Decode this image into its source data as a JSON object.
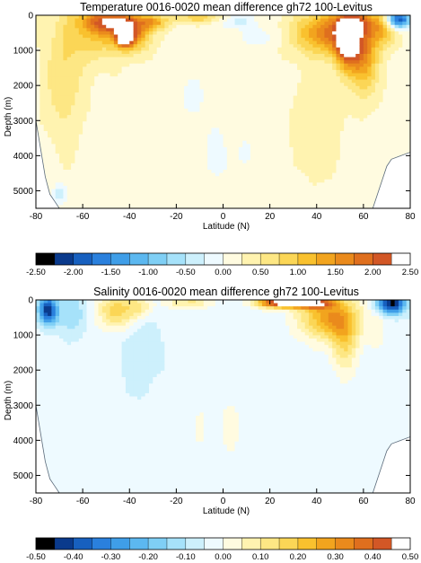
{
  "chart_data": [
    {
      "type": "heatmap",
      "title": "Temperature 0016-0020 mean difference gh72 100-Levitus",
      "xlabel": "Latitude (N)",
      "ylabel": "Depth (m)",
      "xlim": [
        -80,
        80
      ],
      "ylim": [
        5500,
        0
      ],
      "x_ticks": [
        -80,
        -60,
        -40,
        -20,
        0,
        20,
        40,
        60,
        80
      ],
      "x_tick_labels": [
        "-80",
        "-60",
        "-40",
        "-20",
        "0",
        "20",
        "40",
        "60",
        "80"
      ],
      "y_ticks": [
        0,
        1000,
        2000,
        3000,
        4000,
        5000
      ],
      "y_tick_labels": [
        "0",
        "1000",
        "2000",
        "3000",
        "4000",
        "5000"
      ],
      "colorbar": {
        "levels": [
          -2.5,
          -2.25,
          -2.0,
          -1.75,
          -1.5,
          -1.25,
          -1.0,
          -0.75,
          -0.5,
          -0.25,
          0.0,
          0.25,
          0.5,
          0.75,
          1.0,
          1.25,
          1.5,
          1.75,
          2.0,
          2.25,
          2.5
        ],
        "labels": [
          "-2.50",
          "-2.00",
          "-1.50",
          "-1.00",
          "-0.50",
          "0.00",
          "0.50",
          "1.00",
          "1.50",
          "2.00",
          "2.50"
        ],
        "colors": [
          "#000000",
          "#0a3a8c",
          "#1760bf",
          "#2a80dd",
          "#3f9ee8",
          "#5cb8f0",
          "#7fcff5",
          "#a6e2fa",
          "#cdf0fc",
          "#eefaff",
          "#fffbe0",
          "#fff3b0",
          "#fde784",
          "#fbd656",
          "#f9c12e",
          "#f2a41e",
          "#ea8a1c",
          "#df6f1e",
          "#d25726",
          "#ffffff"
        ]
      },
      "features": [
        {
          "lat": -40,
          "depth": 500,
          "lat_radius": 8,
          "depth_radius": 500,
          "value": 1.8
        },
        {
          "lat": -42,
          "depth": 650,
          "lat_radius": 3,
          "depth_radius": 180,
          "value": 2.6
        },
        {
          "lat": -48,
          "depth": 200,
          "lat_radius": 10,
          "depth_radius": 300,
          "value": 1.3
        },
        {
          "lat": -55,
          "depth": 300,
          "lat_radius": 10,
          "depth_radius": 900,
          "value": 0.9
        },
        {
          "lat": -68,
          "depth": 1600,
          "lat_radius": 8,
          "depth_radius": 1800,
          "value": 0.55
        },
        {
          "lat": -30,
          "depth": 200,
          "lat_radius": 6,
          "depth_radius": 200,
          "value": 1.1
        },
        {
          "lat": -10,
          "depth": 80,
          "lat_radius": 12,
          "depth_radius": 150,
          "value": 0.7
        },
        {
          "lat": 5,
          "depth": 150,
          "lat_radius": 8,
          "depth_radius": 200,
          "value": -0.6
        },
        {
          "lat": 15,
          "depth": 600,
          "lat_radius": 8,
          "depth_radius": 300,
          "value": -0.35
        },
        {
          "lat": 45,
          "depth": 500,
          "lat_radius": 14,
          "depth_radius": 600,
          "value": 1.5
        },
        {
          "lat": 53,
          "depth": 800,
          "lat_radius": 5,
          "depth_radius": 700,
          "value": 2.0
        },
        {
          "lat": 60,
          "depth": 1200,
          "lat_radius": 6,
          "depth_radius": 1000,
          "value": 1.3
        },
        {
          "lat": 57,
          "depth": 200,
          "lat_radius": 8,
          "depth_radius": 300,
          "value": 1.1
        },
        {
          "lat": 75,
          "depth": 120,
          "lat_radius": 5,
          "depth_radius": 250,
          "value": -2.3
        },
        {
          "lat": 68,
          "depth": 400,
          "lat_radius": 6,
          "depth_radius": 500,
          "value": 0.9
        },
        {
          "lat": -70,
          "depth": 5100,
          "lat_radius": 3,
          "depth_radius": 300,
          "value": -0.6
        },
        {
          "lat": 0,
          "depth": 4000,
          "lat_radius": 20,
          "depth_radius": 1500,
          "value": -0.2
        },
        {
          "lat": -15,
          "depth": 2200,
          "lat_radius": 8,
          "depth_radius": 800,
          "value": -0.2
        },
        {
          "lat": 40,
          "depth": 3000,
          "lat_radius": 10,
          "depth_radius": 1500,
          "value": 0.3
        }
      ],
      "background_value": 0.18,
      "bottom": {
        "lat": [
          -80,
          -78,
          -76,
          -74,
          -72,
          -70,
          -68,
          -64,
          -60,
          -56,
          -40,
          0,
          40,
          60,
          64,
          66,
          68,
          70,
          72,
          76,
          80
        ],
        "depth": [
          3000,
          3800,
          4600,
          5100,
          5300,
          5500,
          5500,
          5500,
          5500,
          5500,
          5500,
          5500,
          5500,
          5500,
          5500,
          5100,
          4700,
          4300,
          4100,
          4000,
          3900
        ]
      }
    },
    {
      "type": "heatmap",
      "title": "Salinity 0016-0020 mean difference gh72 100-Levitus",
      "xlabel": "Latitude (N)",
      "ylabel": "Depth (m)",
      "xlim": [
        -80,
        80
      ],
      "ylim": [
        5500,
        0
      ],
      "x_ticks": [
        -80,
        -60,
        -40,
        -20,
        0,
        20,
        40,
        60,
        80
      ],
      "x_tick_labels": [
        "-80",
        "-60",
        "-40",
        "-20",
        "0",
        "20",
        "40",
        "60",
        "80"
      ],
      "y_ticks": [
        0,
        1000,
        2000,
        3000,
        4000,
        5000
      ],
      "y_tick_labels": [
        "0",
        "1000",
        "2000",
        "3000",
        "4000",
        "5000"
      ],
      "colorbar": {
        "levels": [
          -0.5,
          -0.45,
          -0.4,
          -0.35,
          -0.3,
          -0.25,
          -0.2,
          -0.15,
          -0.1,
          -0.05,
          0.0,
          0.05,
          0.1,
          0.15,
          0.2,
          0.25,
          0.3,
          0.35,
          0.4,
          0.45,
          0.5
        ],
        "labels": [
          "-0.50",
          "-0.40",
          "-0.30",
          "-0.20",
          "-0.10",
          "0.00",
          "0.10",
          "0.20",
          "0.30",
          "0.40",
          "0.50"
        ],
        "colors": [
          "#000000",
          "#0a3a8c",
          "#1760bf",
          "#2a80dd",
          "#3f9ee8",
          "#5cb8f0",
          "#7fcff5",
          "#a6e2fa",
          "#cdf0fc",
          "#eefaff",
          "#fffbe0",
          "#fff3b0",
          "#fde784",
          "#fbd656",
          "#f9c12e",
          "#f2a41e",
          "#ea8a1c",
          "#df6f1e",
          "#d25726",
          "#ffffff"
        ]
      },
      "features": [
        {
          "lat": -75,
          "depth": 300,
          "lat_radius": 4,
          "depth_radius": 400,
          "value": -0.4
        },
        {
          "lat": -65,
          "depth": 400,
          "lat_radius": 6,
          "depth_radius": 600,
          "value": -0.12
        },
        {
          "lat": -45,
          "depth": 300,
          "lat_radius": 8,
          "depth_radius": 500,
          "value": 0.22
        },
        {
          "lat": -35,
          "depth": 200,
          "lat_radius": 5,
          "depth_radius": 300,
          "value": 0.12
        },
        {
          "lat": -15,
          "depth": 80,
          "lat_radius": 10,
          "depth_radius": 150,
          "value": 0.14
        },
        {
          "lat": 25,
          "depth": 80,
          "lat_radius": 10,
          "depth_radius": 150,
          "value": 0.55
        },
        {
          "lat": 45,
          "depth": 500,
          "lat_radius": 12,
          "depth_radius": 600,
          "value": 0.3
        },
        {
          "lat": 52,
          "depth": 1100,
          "lat_radius": 6,
          "depth_radius": 900,
          "value": 0.18
        },
        {
          "lat": 38,
          "depth": 100,
          "lat_radius": 8,
          "depth_radius": 150,
          "value": 0.4
        },
        {
          "lat": 72,
          "depth": 100,
          "lat_radius": 6,
          "depth_radius": 300,
          "value": -0.45
        },
        {
          "lat": 66,
          "depth": 700,
          "lat_radius": 4,
          "depth_radius": 800,
          "value": 0.05
        },
        {
          "lat": 0,
          "depth": 3500,
          "lat_radius": 25,
          "depth_radius": 2000,
          "value": 0.03
        },
        {
          "lat": -35,
          "depth": 1500,
          "lat_radius": 10,
          "depth_radius": 1500,
          "value": -0.05
        }
      ],
      "background_value": -0.03,
      "bottom": {
        "lat": [
          -80,
          -78,
          -76,
          -74,
          -72,
          -70,
          -68,
          -64,
          -60,
          -56,
          -40,
          0,
          40,
          60,
          64,
          66,
          68,
          70,
          72,
          76,
          80
        ],
        "depth": [
          3000,
          3800,
          4600,
          5100,
          5300,
          5500,
          5500,
          5500,
          5500,
          5500,
          5500,
          5500,
          5500,
          5500,
          5500,
          5100,
          4700,
          4300,
          4100,
          4000,
          3900
        ]
      }
    }
  ]
}
